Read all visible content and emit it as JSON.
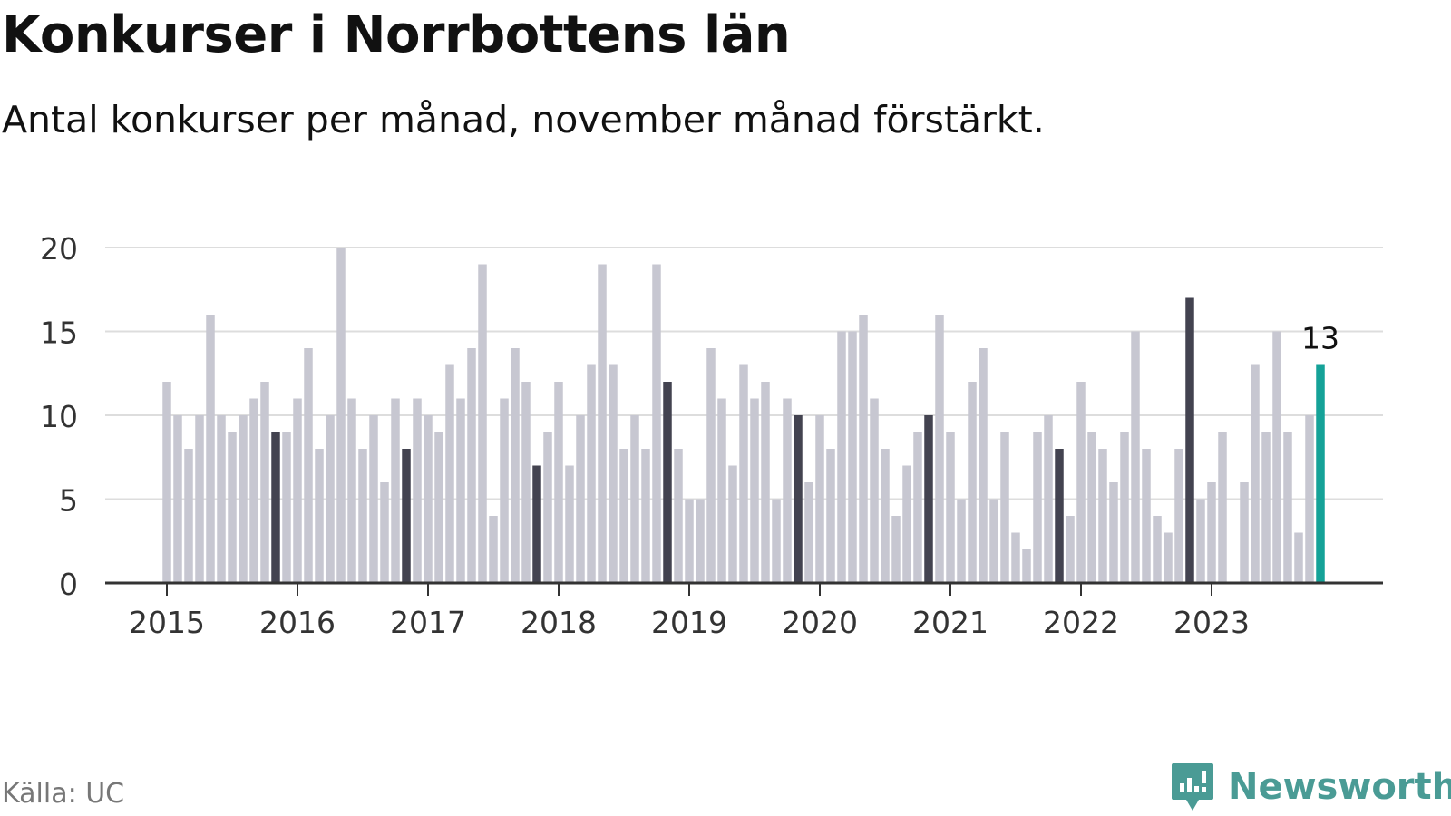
{
  "title": "Konkurser i Norrbottens län",
  "subtitle": "Antal konkurser per månad, november månad förstärkt.",
  "source": "Källa: UC",
  "brand": {
    "name": "Newsworthy",
    "icon": "newsworthy-logo-icon"
  },
  "colors": {
    "normal": "#c7c7d1",
    "highlight": "#434350",
    "latest": "#15a298",
    "grid": "#dddddd",
    "axis": "#333333"
  },
  "chart_data": {
    "type": "bar",
    "title": "Konkurser i Norrbottens län",
    "subtitle": "Antal konkurser per månad, november månad förstärkt.",
    "xlabel": "",
    "ylabel": "",
    "ylim": [
      0,
      20
    ],
    "y_ticks": [
      0,
      5,
      10,
      15,
      20
    ],
    "x_ticks": [
      "2015",
      "2016",
      "2017",
      "2018",
      "2019",
      "2020",
      "2021",
      "2022",
      "2023"
    ],
    "start": "2015-01",
    "end": "2023-11",
    "grid": true,
    "highlight_month": "november",
    "latest_label": "13",
    "values": [
      12,
      10,
      8,
      10,
      16,
      10,
      9,
      10,
      11,
      12,
      9,
      9,
      11,
      14,
      8,
      10,
      20,
      11,
      8,
      10,
      6,
      11,
      8,
      11,
      10,
      9,
      13,
      11,
      14,
      19,
      4,
      11,
      14,
      12,
      7,
      9,
      12,
      7,
      10,
      13,
      19,
      13,
      8,
      10,
      8,
      19,
      12,
      8,
      5,
      5,
      14,
      11,
      7,
      13,
      11,
      12,
      5,
      11,
      10,
      6,
      10,
      8,
      15,
      15,
      16,
      11,
      8,
      4,
      7,
      9,
      10,
      16,
      9,
      5,
      12,
      14,
      5,
      9,
      3,
      2,
      9,
      10,
      8,
      4,
      12,
      9,
      8,
      6,
      9,
      15,
      8,
      4,
      3,
      8,
      17,
      5,
      6,
      9,
      0,
      6,
      13,
      9,
      15,
      9,
      3,
      10,
      13
    ]
  }
}
